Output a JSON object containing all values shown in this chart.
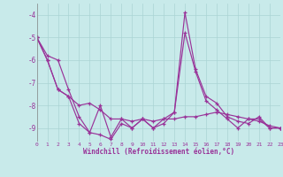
{
  "x": [
    0,
    1,
    2,
    3,
    4,
    5,
    6,
    7,
    8,
    9,
    10,
    11,
    12,
    13,
    14,
    15,
    16,
    17,
    18,
    19,
    20,
    21,
    22,
    23
  ],
  "line1": [
    -5.0,
    -6.0,
    -7.3,
    -7.6,
    -8.8,
    -9.2,
    -8.0,
    -9.4,
    -8.6,
    -9.0,
    -8.6,
    -9.0,
    -8.6,
    -8.3,
    -3.9,
    -6.4,
    -7.6,
    -7.9,
    -8.5,
    -8.7,
    -8.8,
    -8.5,
    -9.0,
    -9.0
  ],
  "line2": [
    -5.0,
    -6.0,
    -7.3,
    -7.6,
    -8.0,
    -7.9,
    -8.2,
    -8.6,
    -8.6,
    -8.7,
    -8.6,
    -8.7,
    -8.6,
    -8.6,
    -8.5,
    -8.5,
    -8.4,
    -8.3,
    -8.4,
    -8.5,
    -8.6,
    -8.7,
    -8.9,
    -9.0
  ],
  "line3": [
    -5.0,
    -5.8,
    -6.0,
    -7.3,
    -8.5,
    -9.2,
    -9.3,
    -9.5,
    -8.8,
    -9.0,
    -8.6,
    -9.0,
    -8.8,
    -8.3,
    -4.8,
    -6.5,
    -7.8,
    -8.2,
    -8.6,
    -9.0,
    -8.6,
    -8.6,
    -9.0,
    -9.0
  ],
  "ylim": [
    -9.6,
    -3.5
  ],
  "xlim": [
    0,
    23
  ],
  "yticks": [
    -9,
    -8,
    -7,
    -6,
    -5,
    -4
  ],
  "xticks": [
    0,
    1,
    2,
    3,
    4,
    5,
    6,
    7,
    8,
    9,
    10,
    11,
    12,
    13,
    14,
    15,
    16,
    17,
    18,
    19,
    20,
    21,
    22,
    23
  ],
  "xlabel": "Windchill (Refroidissement éolien,°C)",
  "line_color": "#993399",
  "bg_color": "#c8eaea",
  "grid_color": "#aad4d4",
  "label_color": "#993399",
  "marker": "+"
}
